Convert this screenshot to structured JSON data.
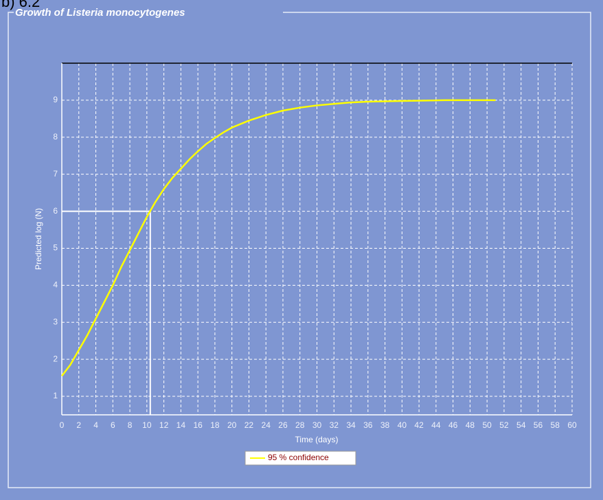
{
  "chart_data": {
    "type": "line",
    "heading": "b) 6.2",
    "title": "Growth of Listeria monocytogenes",
    "xlabel": "Time (days)",
    "ylabel": "Predicted log (N)",
    "xlim": [
      0,
      60
    ],
    "ylim": [
      0.5,
      10
    ],
    "xticks": [
      0,
      2,
      4,
      6,
      8,
      10,
      12,
      14,
      16,
      18,
      20,
      22,
      24,
      26,
      28,
      30,
      32,
      34,
      36,
      38,
      40,
      42,
      44,
      46,
      48,
      50,
      52,
      54,
      56,
      58,
      60
    ],
    "yticks": [
      1,
      2,
      3,
      4,
      5,
      6,
      7,
      8,
      9
    ],
    "grid": true,
    "series": [
      {
        "name": "95 % confidence",
        "color": "#ffff00",
        "x": [
          0,
          1,
          2,
          3,
          4,
          5,
          6,
          7,
          8,
          9,
          10,
          11,
          12,
          13,
          14,
          15,
          16,
          17,
          18,
          19,
          20,
          22,
          24,
          26,
          28,
          30,
          32,
          34,
          36,
          40,
          45,
          51
        ],
        "values": [
          1.55,
          1.85,
          2.25,
          2.65,
          3.1,
          3.55,
          4.0,
          4.5,
          4.95,
          5.4,
          5.85,
          6.25,
          6.6,
          6.9,
          7.15,
          7.4,
          7.62,
          7.82,
          7.98,
          8.13,
          8.26,
          8.45,
          8.6,
          8.72,
          8.8,
          8.86,
          8.9,
          8.94,
          8.96,
          8.98,
          9.0,
          9.0
        ]
      }
    ],
    "reference_point": {
      "x": 10.4,
      "y": 6
    }
  }
}
